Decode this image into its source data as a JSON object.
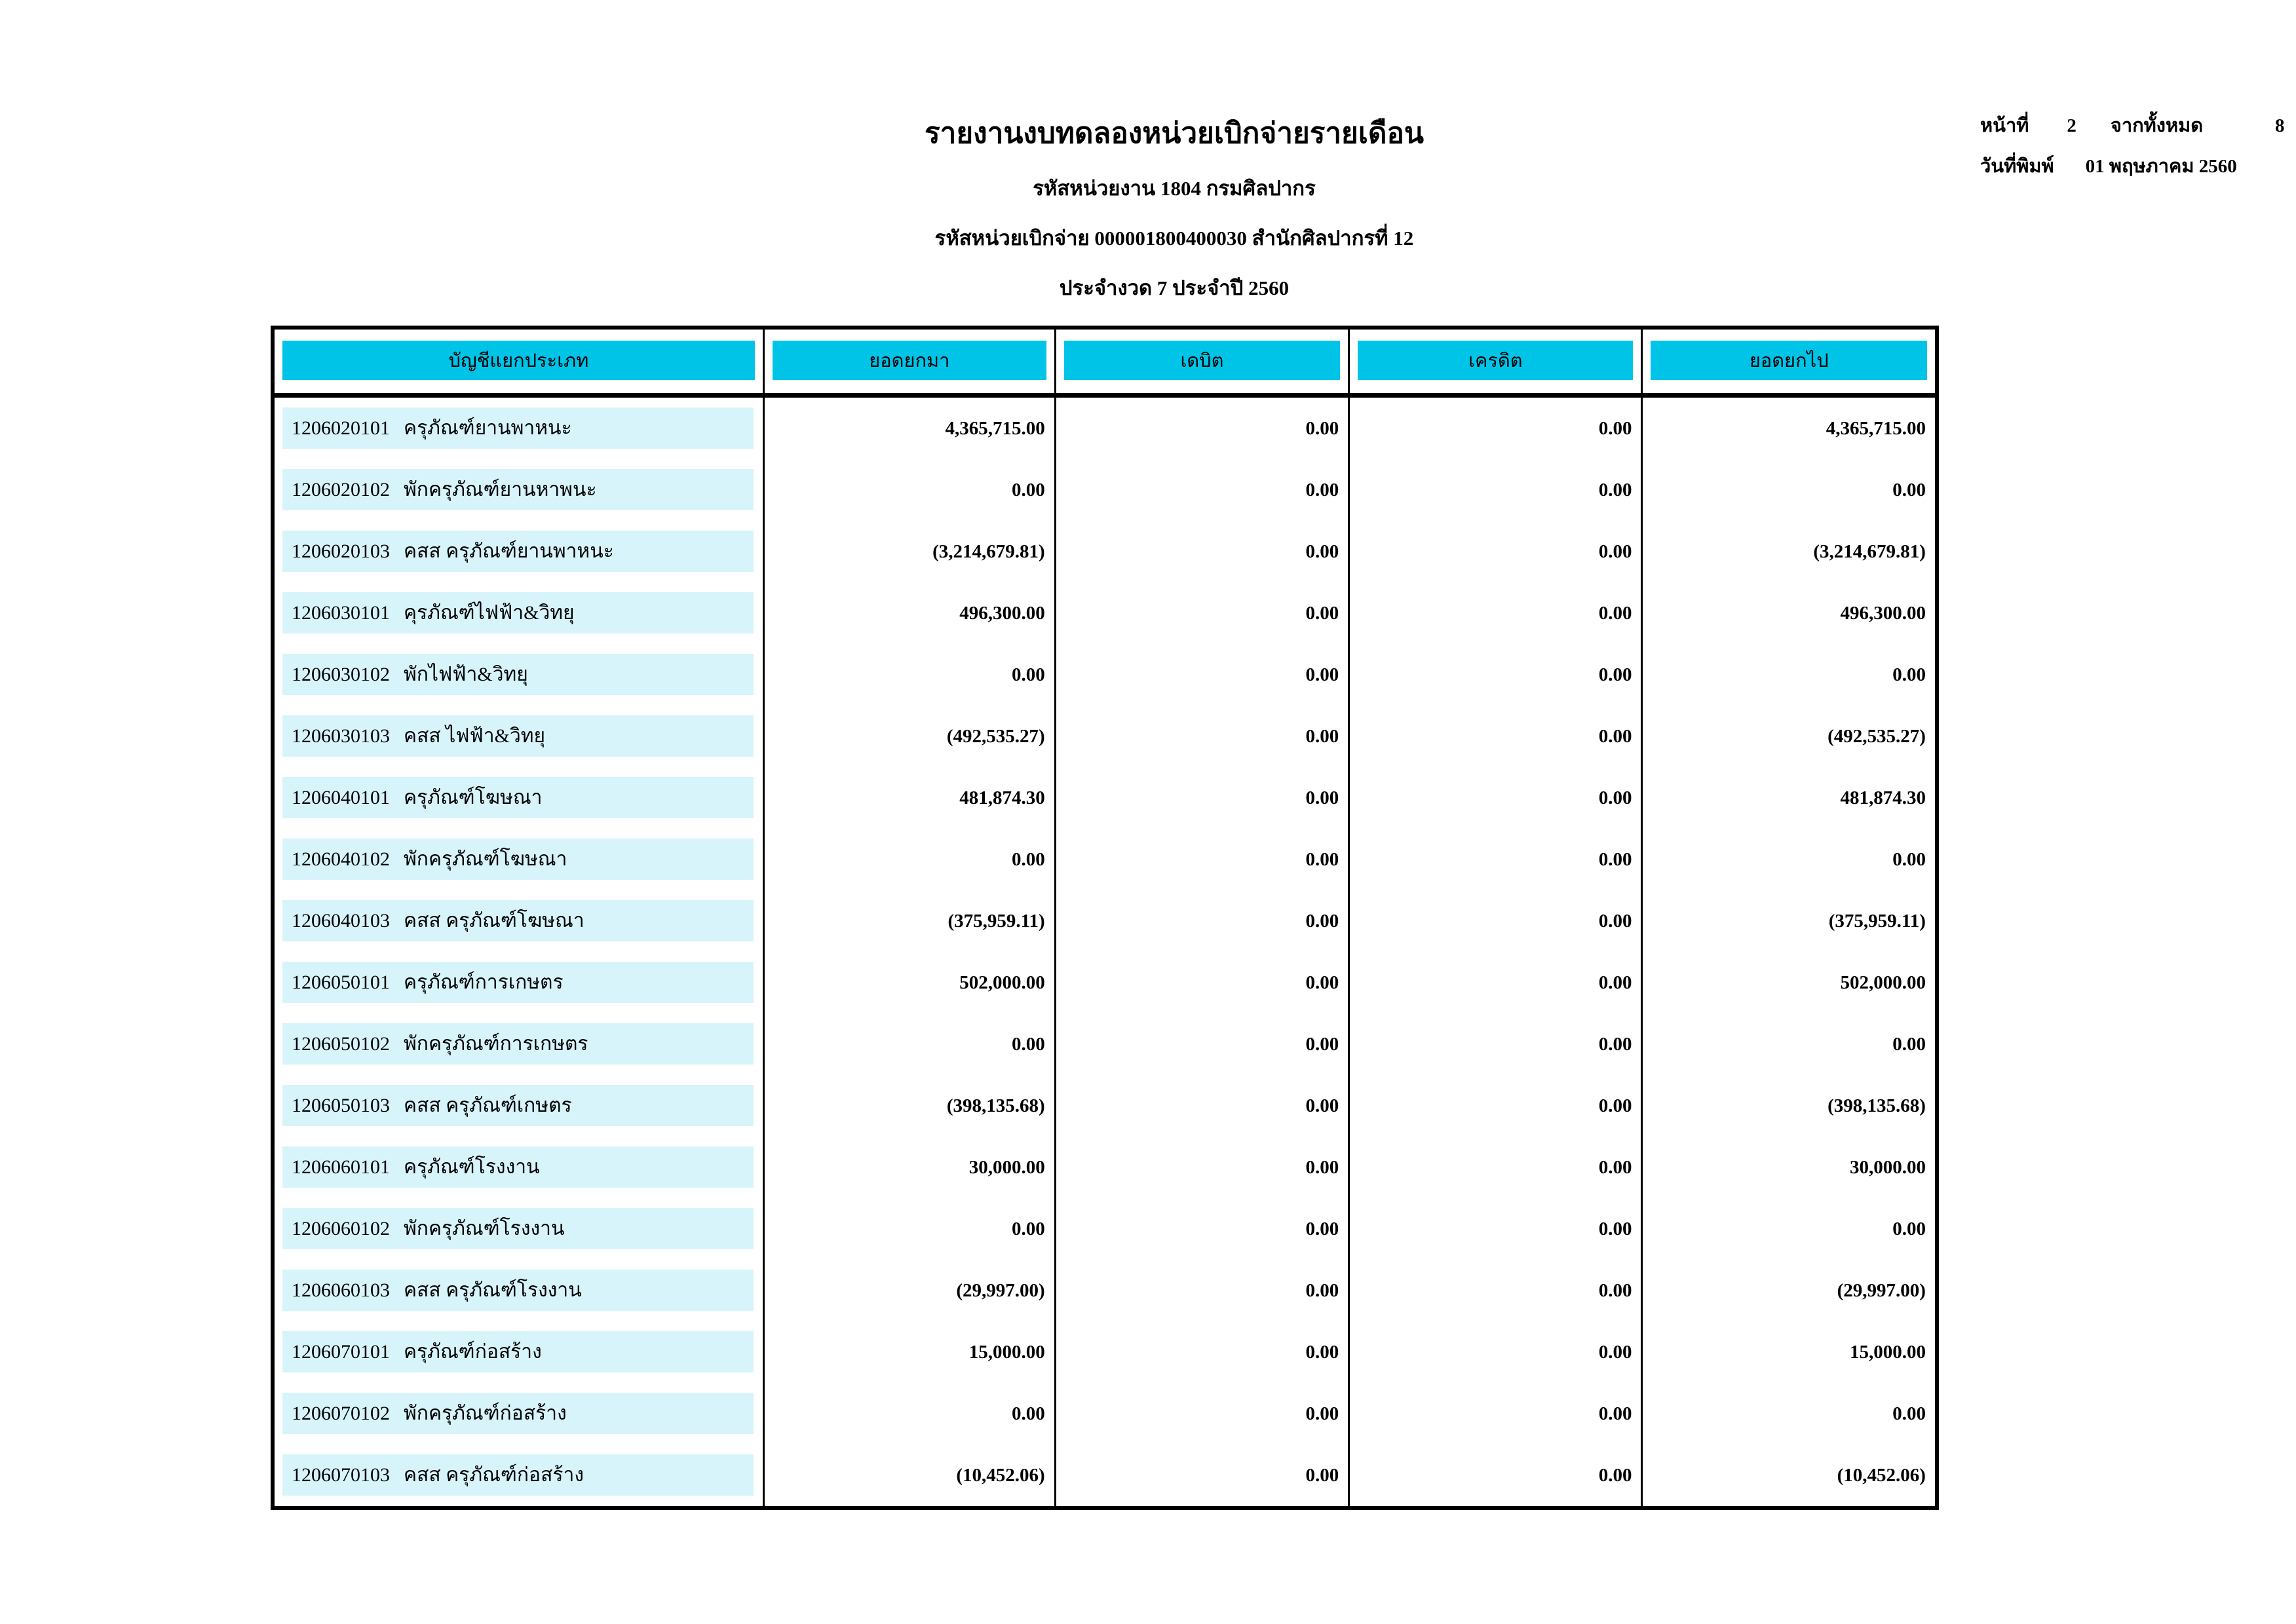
{
  "page": {
    "title": "รายงานงบทดลองหน่วยเบิกจ่ายรายเดือน",
    "subtitle_agency": "รหัสหน่วยงาน 1804 กรมศิลปากร",
    "subtitle_unit": "รหัสหน่วยเบิกจ่าย 000001800400030 สำนักศิลปากรที่ 12",
    "subtitle_period": "ประจำงวด 7 ประจำปี 2560",
    "page_label": "หน้าที่",
    "page_number": "2",
    "total_label": "จากทั้งหมด",
    "total_pages": "8",
    "print_date_label": "วันที่พิมพ์",
    "print_date": "01 พฤษภาคม 2560"
  },
  "colors": {
    "header_bg": "#00C3E8",
    "row_band_bg": "#D7F4FB",
    "border": "#000000"
  },
  "table": {
    "headers": [
      "บัญชีแยกประเภท",
      "ยอดยกมา",
      "เดบิต",
      "เครดิต",
      "ยอดยกไป"
    ],
    "rows": [
      {
        "code": "1206020101",
        "name": "ครุภัณฑ์ยานพาหนะ",
        "opening": "4,365,715.00",
        "debit": "0.00",
        "credit": "0.00",
        "closing": "4,365,715.00"
      },
      {
        "code": "1206020102",
        "name": "พักครุภัณฑ์ยานหาพนะ",
        "opening": "0.00",
        "debit": "0.00",
        "credit": "0.00",
        "closing": "0.00"
      },
      {
        "code": "1206020103",
        "name": "คสส ครุภัณฑ์ยานพาหนะ",
        "opening": "(3,214,679.81)",
        "debit": "0.00",
        "credit": "0.00",
        "closing": "(3,214,679.81)"
      },
      {
        "code": "1206030101",
        "name": "คุรภัณฑ์ไฟฟ้า&วิทยุ",
        "opening": "496,300.00",
        "debit": "0.00",
        "credit": "0.00",
        "closing": "496,300.00"
      },
      {
        "code": "1206030102",
        "name": "พักไฟฟ้า&วิทยุ",
        "opening": "0.00",
        "debit": "0.00",
        "credit": "0.00",
        "closing": "0.00"
      },
      {
        "code": "1206030103",
        "name": "คสส ไฟฟ้า&วิทยุ",
        "opening": "(492,535.27)",
        "debit": "0.00",
        "credit": "0.00",
        "closing": "(492,535.27)"
      },
      {
        "code": "1206040101",
        "name": "ครุภัณฑ์โฆษณา",
        "opening": "481,874.30",
        "debit": "0.00",
        "credit": "0.00",
        "closing": "481,874.30"
      },
      {
        "code": "1206040102",
        "name": "พักครุภัณฑ์โฆษณา",
        "opening": "0.00",
        "debit": "0.00",
        "credit": "0.00",
        "closing": "0.00"
      },
      {
        "code": "1206040103",
        "name": "คสส ครุภัณฑ์โฆษณา",
        "opening": "(375,959.11)",
        "debit": "0.00",
        "credit": "0.00",
        "closing": "(375,959.11)"
      },
      {
        "code": "1206050101",
        "name": "ครุภัณฑ์การเกษตร",
        "opening": "502,000.00",
        "debit": "0.00",
        "credit": "0.00",
        "closing": "502,000.00"
      },
      {
        "code": "1206050102",
        "name": "พักครุภัณฑ์การเกษตร",
        "opening": "0.00",
        "debit": "0.00",
        "credit": "0.00",
        "closing": "0.00"
      },
      {
        "code": "1206050103",
        "name": "คสส ครุภัณฑ์เกษตร",
        "opening": "(398,135.68)",
        "debit": "0.00",
        "credit": "0.00",
        "closing": "(398,135.68)"
      },
      {
        "code": "1206060101",
        "name": "ครุภัณฑ์โรงงาน",
        "opening": "30,000.00",
        "debit": "0.00",
        "credit": "0.00",
        "closing": "30,000.00"
      },
      {
        "code": "1206060102",
        "name": "พักครุภัณฑ์โรงงาน",
        "opening": "0.00",
        "debit": "0.00",
        "credit": "0.00",
        "closing": "0.00"
      },
      {
        "code": "1206060103",
        "name": "คสส ครุภัณฑ์โรงงาน",
        "opening": "(29,997.00)",
        "debit": "0.00",
        "credit": "0.00",
        "closing": "(29,997.00)"
      },
      {
        "code": "1206070101",
        "name": "ครุภัณฑ์ก่อสร้าง",
        "opening": "15,000.00",
        "debit": "0.00",
        "credit": "0.00",
        "closing": "15,000.00"
      },
      {
        "code": "1206070102",
        "name": "พักครุภัณฑ์ก่อสร้าง",
        "opening": "0.00",
        "debit": "0.00",
        "credit": "0.00",
        "closing": "0.00"
      },
      {
        "code": "1206070103",
        "name": "คสส ครุภัณฑ์ก่อสร้าง",
        "opening": "(10,452.06)",
        "debit": "0.00",
        "credit": "0.00",
        "closing": "(10,452.06)"
      }
    ]
  }
}
